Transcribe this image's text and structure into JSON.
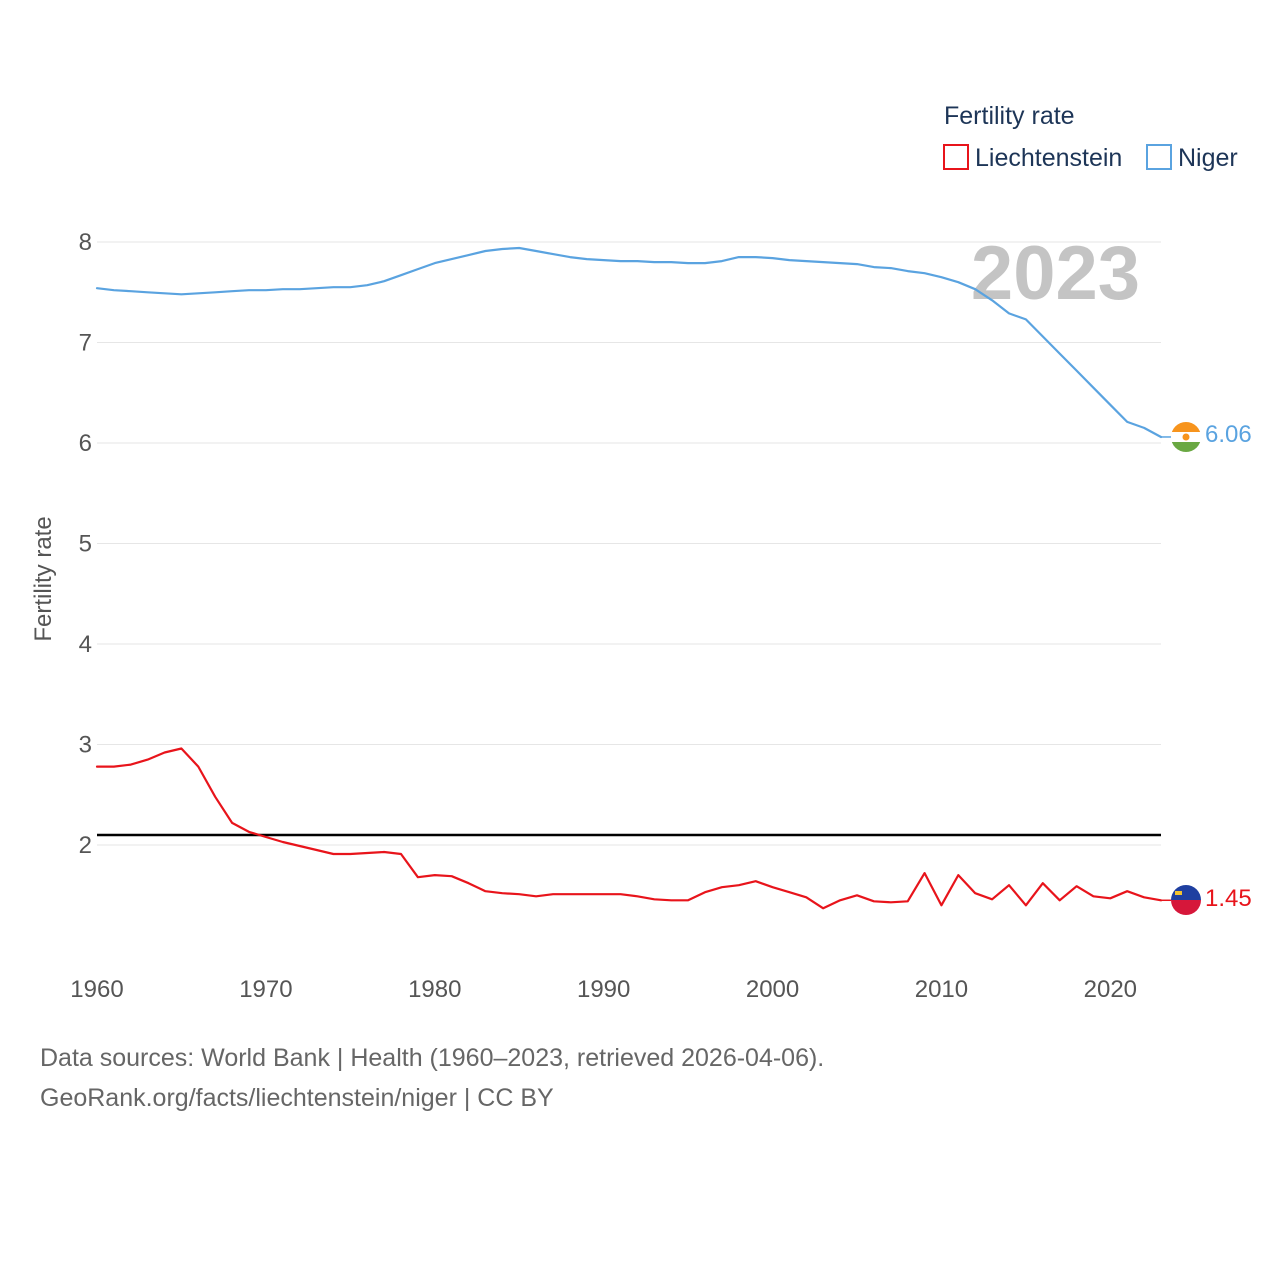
{
  "chart_data": {
    "type": "line",
    "title": "",
    "legend_title": "Fertility rate",
    "legend_position": "top-right",
    "ylabel": "Fertility rate",
    "xlabel": "",
    "xlim": [
      1960,
      2023
    ],
    "ylim": [
      1,
      8.5
    ],
    "x_ticks": [
      1960,
      1970,
      1980,
      1990,
      2000,
      2010,
      2020
    ],
    "y_ticks": [
      2,
      3,
      4,
      5,
      6,
      7,
      8
    ],
    "grid": true,
    "year_label": "2023",
    "reference_line": {
      "value": 2.1,
      "color": "#000000"
    },
    "series": [
      {
        "name": "Liechtenstein",
        "color": "#e8141b",
        "end_label": "1.45",
        "x": [
          1960,
          1961,
          1962,
          1963,
          1964,
          1965,
          1966,
          1967,
          1968,
          1969,
          1970,
          1971,
          1972,
          1973,
          1974,
          1975,
          1976,
          1977,
          1978,
          1979,
          1980,
          1981,
          1982,
          1983,
          1984,
          1985,
          1986,
          1987,
          1988,
          1989,
          1990,
          1991,
          1992,
          1993,
          1994,
          1995,
          1996,
          1997,
          1998,
          1999,
          2000,
          2001,
          2002,
          2003,
          2004,
          2005,
          2006,
          2007,
          2008,
          2009,
          2010,
          2011,
          2012,
          2013,
          2014,
          2015,
          2016,
          2017,
          2018,
          2019,
          2020,
          2021,
          2022,
          2023
        ],
        "values": [
          2.78,
          2.78,
          2.8,
          2.85,
          2.92,
          2.96,
          2.78,
          2.48,
          2.22,
          2.13,
          2.08,
          2.03,
          1.99,
          1.95,
          1.91,
          1.91,
          1.92,
          1.93,
          1.91,
          1.68,
          1.7,
          1.69,
          1.62,
          1.54,
          1.52,
          1.51,
          1.49,
          1.51,
          1.51,
          1.51,
          1.51,
          1.51,
          1.49,
          1.46,
          1.45,
          1.45,
          1.53,
          1.58,
          1.6,
          1.64,
          1.58,
          1.53,
          1.48,
          1.37,
          1.45,
          1.5,
          1.44,
          1.43,
          1.44,
          1.72,
          1.4,
          1.7,
          1.52,
          1.46,
          1.6,
          1.4,
          1.62,
          1.45,
          1.59,
          1.49,
          1.47,
          1.54,
          1.48,
          1.45
        ]
      },
      {
        "name": "Niger",
        "color": "#5aa3e0",
        "end_label": "6.06",
        "x": [
          1960,
          1961,
          1962,
          1963,
          1964,
          1965,
          1966,
          1967,
          1968,
          1969,
          1970,
          1971,
          1972,
          1973,
          1974,
          1975,
          1976,
          1977,
          1978,
          1979,
          1980,
          1981,
          1982,
          1983,
          1984,
          1985,
          1986,
          1987,
          1988,
          1989,
          1990,
          1991,
          1992,
          1993,
          1994,
          1995,
          1996,
          1997,
          1998,
          1999,
          2000,
          2001,
          2002,
          2003,
          2004,
          2005,
          2006,
          2007,
          2008,
          2009,
          2010,
          2011,
          2012,
          2013,
          2014,
          2015,
          2016,
          2017,
          2018,
          2019,
          2020,
          2021,
          2022,
          2023
        ],
        "values": [
          7.54,
          7.52,
          7.51,
          7.5,
          7.49,
          7.48,
          7.49,
          7.5,
          7.51,
          7.52,
          7.52,
          7.53,
          7.53,
          7.54,
          7.55,
          7.55,
          7.57,
          7.61,
          7.67,
          7.73,
          7.79,
          7.83,
          7.87,
          7.91,
          7.93,
          7.94,
          7.91,
          7.88,
          7.85,
          7.83,
          7.82,
          7.81,
          7.81,
          7.8,
          7.8,
          7.79,
          7.79,
          7.81,
          7.85,
          7.85,
          7.84,
          7.82,
          7.81,
          7.8,
          7.79,
          7.78,
          7.75,
          7.74,
          7.71,
          7.69,
          7.65,
          7.6,
          7.53,
          7.42,
          7.29,
          7.23,
          7.06,
          6.89,
          6.72,
          6.55,
          6.38,
          6.21,
          6.15,
          6.06
        ]
      }
    ]
  },
  "footer": {
    "line1": "Data sources: World Bank | Health (1960–2023, retrieved 2026-04-06).",
    "line2": "GeoRank.org/facts/liechtenstein/niger | CC BY"
  },
  "icons": {
    "niger_flag": "niger-flag-icon",
    "liechtenstein_flag": "liechtenstein-flag-icon"
  },
  "colors": {
    "grid": "#e6e6e6",
    "tick_text": "#555555",
    "legend_text": "#1d3557",
    "watermark": "#c4c4c4"
  }
}
